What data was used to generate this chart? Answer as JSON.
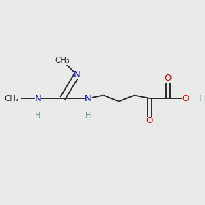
{
  "bg_color": "#e9ebe9",
  "bond_color": "#2a2a2a",
  "N_color": "#0000cc",
  "O_color": "#dd0000",
  "H_color": "#5a9090",
  "CH3_color": "#2a2a2a",
  "font_size": 9.5,
  "bond_width": 1.4,
  "figsize": [
    3.0,
    3.0
  ],
  "dpi": 100,
  "xlim": [
    0,
    10
  ],
  "ylim": [
    0,
    10
  ]
}
